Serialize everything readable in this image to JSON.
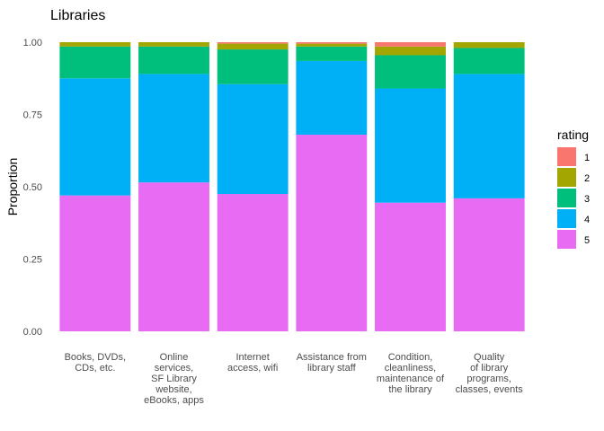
{
  "chart_data": {
    "type": "bar",
    "stacked": true,
    "title": "Libraries",
    "xlabel": "",
    "ylabel": "Proportion",
    "ylim": [
      0,
      1
    ],
    "yticks": [
      "0.00",
      "0.25",
      "0.50",
      "0.75",
      "1.00"
    ],
    "grid": false,
    "legend_position": "right",
    "legend_title": "rating",
    "categories": [
      [
        "Books, DVDs,",
        "CDs, etc."
      ],
      [
        "Online",
        "services,",
        "SF Library",
        "website,",
        "eBooks, apps"
      ],
      [
        "Internet",
        "access, wifi"
      ],
      [
        "Assistance from",
        "library staff"
      ],
      [
        "Condition,",
        "cleanliness,",
        "maintenance of",
        "the library"
      ],
      [
        "Quality",
        "of library",
        "programs,",
        "classes, events"
      ]
    ],
    "series": [
      {
        "name": "5",
        "color": "#E76BF3",
        "values": [
          0.47,
          0.515,
          0.475,
          0.68,
          0.445,
          0.46
        ]
      },
      {
        "name": "4",
        "color": "#00B0F6",
        "values": [
          0.405,
          0.375,
          0.38,
          0.255,
          0.395,
          0.43
        ]
      },
      {
        "name": "3",
        "color": "#00BF7D",
        "values": [
          0.11,
          0.095,
          0.12,
          0.05,
          0.115,
          0.09
        ]
      },
      {
        "name": "2",
        "color": "#A3A500",
        "values": [
          0.015,
          0.015,
          0.02,
          0.01,
          0.03,
          0.02
        ]
      },
      {
        "name": "1",
        "color": "#F8766D",
        "values": [
          0.0,
          0.0,
          0.005,
          0.005,
          0.015,
          0.0
        ]
      }
    ],
    "legend_order": [
      "1",
      "2",
      "3",
      "4",
      "5"
    ]
  }
}
